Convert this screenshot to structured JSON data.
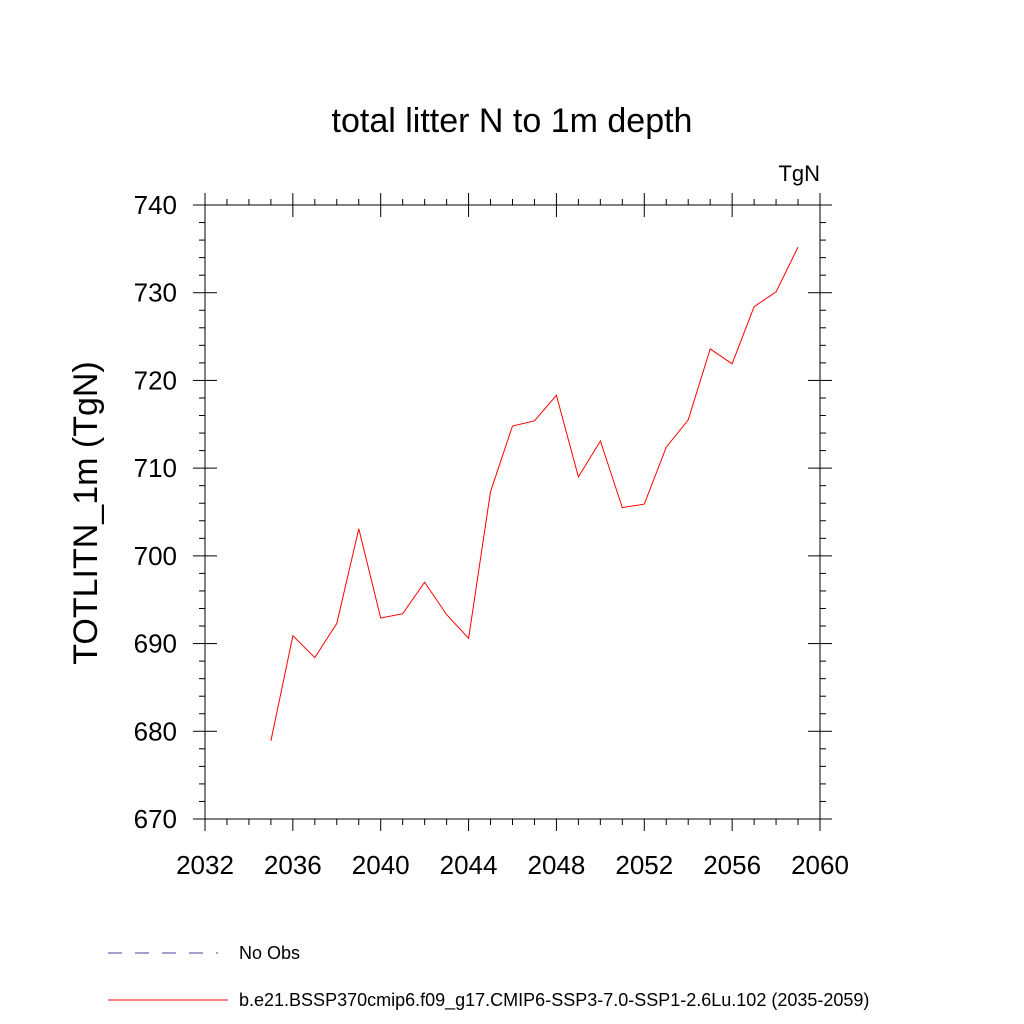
{
  "chart_data": {
    "type": "line",
    "title": "total litter N to 1m depth",
    "units": "TgN",
    "xlabel": "",
    "ylabel": "TOTLITN_1m  (TgN)",
    "xlim": [
      2032,
      2060
    ],
    "ylim": [
      670,
      740
    ],
    "x_ticks": [
      "2032",
      "2036",
      "2040",
      "2044",
      "2048",
      "2052",
      "2056",
      "2060"
    ],
    "y_ticks": [
      "670",
      "680",
      "690",
      "700",
      "710",
      "720",
      "730",
      "740"
    ],
    "grid": false,
    "legend_placement": "bottom",
    "series": [
      {
        "name": "b.e21.BSSP370cmip6.f09_g17.CMIP6-SSP3-7.0-SSP1-2.6Lu.102 (2035-2059)",
        "color": "#ff0000",
        "style": "solid",
        "x": [
          2035,
          2036,
          2037,
          2038,
          2039,
          2040,
          2041,
          2042,
          2043,
          2044,
          2045,
          2046,
          2047,
          2048,
          2049,
          2050,
          2051,
          2052,
          2053,
          2054,
          2055,
          2056,
          2057,
          2058,
          2059
        ],
        "y": [
          678.9,
          690.9,
          688.4,
          692.3,
          703.1,
          692.9,
          693.4,
          697.0,
          693.3,
          690.6,
          707.3,
          714.8,
          715.4,
          718.3,
          709.0,
          713.1,
          705.5,
          705.9,
          712.4,
          715.5,
          723.6,
          721.9,
          728.4,
          730.1,
          735.2
        ]
      }
    ],
    "legend": [
      {
        "label": "No Obs",
        "color": "#4b3fa0",
        "style": "dashed"
      },
      {
        "label": "b.e21.BSSP370cmip6.f09_g17.CMIP6-SSP3-7.0-SSP1-2.6Lu.102 (2035-2059)",
        "color": "#ff0000",
        "style": "solid"
      }
    ]
  }
}
